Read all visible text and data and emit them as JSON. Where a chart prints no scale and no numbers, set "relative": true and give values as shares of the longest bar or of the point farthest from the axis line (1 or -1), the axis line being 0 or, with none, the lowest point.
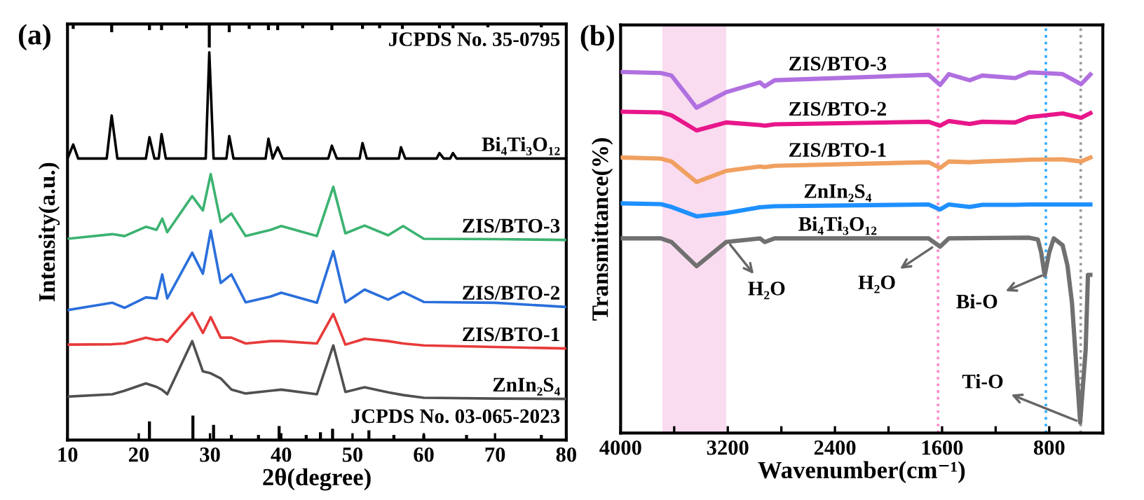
{
  "chart_data": [
    {
      "type": "line",
      "title": "(a)",
      "xlabel": "2θ(degree)",
      "ylabel": "Intensity(a.u.)",
      "relative": true,
      "xlim": [
        10,
        80
      ],
      "xticks": [
        10,
        20,
        30,
        40,
        50,
        60,
        70,
        80
      ],
      "legend": false,
      "grid": false,
      "series": [
        {
          "name": "Bi₄Ti₃O₁₂",
          "color": "#000000",
          "x": [
            10,
            10.8,
            11.5,
            15.5,
            16.2,
            17,
            21,
            21.5,
            22.2,
            22.8,
            23.2,
            23.8,
            29.4,
            29.9,
            30.5,
            32.3,
            32.7,
            33.3,
            37.8,
            38.2,
            38.8,
            39.5,
            40.2,
            46.6,
            47.1,
            47.8,
            51,
            51.4,
            52,
            56.5,
            56.8,
            57.4,
            61.8,
            62.2,
            62.8,
            63.7,
            64.1,
            64.6,
            80
          ],
          "values": [
            0.726,
            0.762,
            0.726,
            0.726,
            0.837,
            0.726,
            0.726,
            0.781,
            0.726,
            0.726,
            0.789,
            0.726,
            0.726,
            1,
            0.726,
            0.726,
            0.784,
            0.726,
            0.726,
            0.777,
            0.726,
            0.755,
            0.726,
            0.726,
            0.759,
            0.726,
            0.726,
            0.766,
            0.726,
            0.726,
            0.755,
            0.726,
            0.726,
            0.74,
            0.726,
            0.726,
            0.74,
            0.726,
            0.726
          ]
        },
        {
          "name": "ZIS/BTO-3",
          "color": "#3cb371",
          "x": [
            10,
            16.3,
            18,
            21,
            22.5,
            23.3,
            24,
            27.5,
            29,
            30.1,
            31.5,
            33,
            35,
            38.5,
            40,
            45,
            47.3,
            49,
            51.7,
            55,
            57.1,
            60,
            70,
            80
          ],
          "values": [
            0.519,
            0.531,
            0.526,
            0.55,
            0.542,
            0.571,
            0.536,
            0.629,
            0.592,
            0.686,
            0.562,
            0.584,
            0.526,
            0.542,
            0.552,
            0.526,
            0.653,
            0.533,
            0.553,
            0.528,
            0.552,
            0.519,
            0.518,
            0.516
          ]
        },
        {
          "name": "ZIS/BTO-2",
          "color": "#2a6fdb",
          "x": [
            10,
            16.3,
            18,
            21,
            22.5,
            23.3,
            24,
            27.5,
            29,
            30.1,
            31.5,
            33,
            35,
            38.5,
            40,
            45,
            47.3,
            49,
            51.7,
            55,
            57.1,
            60,
            70,
            80
          ],
          "values": [
            0.335,
            0.354,
            0.341,
            0.368,
            0.365,
            0.427,
            0.365,
            0.483,
            0.429,
            0.54,
            0.405,
            0.427,
            0.355,
            0.37,
            0.38,
            0.354,
            0.487,
            0.355,
            0.388,
            0.362,
            0.382,
            0.356,
            0.354,
            0.343
          ]
        },
        {
          "name": "ZIS/BTO-1",
          "color": "#e83a3a",
          "x": [
            10,
            16.3,
            18,
            21,
            22.5,
            23.3,
            24,
            27.5,
            29,
            30.1,
            31.5,
            33,
            35,
            38.5,
            40,
            45,
            47.3,
            49,
            51.7,
            55,
            57.1,
            60,
            70,
            80
          ],
          "values": [
            0.246,
            0.247,
            0.249,
            0.264,
            0.258,
            0.26,
            0.253,
            0.328,
            0.276,
            0.317,
            0.264,
            0.264,
            0.249,
            0.255,
            0.255,
            0.249,
            0.325,
            0.246,
            0.261,
            0.255,
            0.249,
            0.244,
            0.24,
            0.236
          ]
        },
        {
          "name": "ZnIn₂S₄",
          "color": "#505050",
          "x": [
            10,
            16.3,
            18,
            21,
            22.5,
            23.3,
            24,
            27.5,
            29,
            30.1,
            31.5,
            33,
            35,
            38.5,
            40,
            45,
            47.3,
            49,
            51.7,
            55,
            57.1,
            60,
            70,
            80
          ],
          "values": [
            0.112,
            0.118,
            0.127,
            0.146,
            0.137,
            0.129,
            0.118,
            0.255,
            0.177,
            0.172,
            0.159,
            0.13,
            0.12,
            0.127,
            0.13,
            0.118,
            0.244,
            0.124,
            0.136,
            0.123,
            0.116,
            0.109,
            0.107,
            0.106
          ]
        },
        {
          "name": "JCPDS No. 03-065-2023",
          "type": "bar",
          "color": "#000000",
          "x": [
            21.5,
            27.6,
            30.5,
            33,
            36.8,
            39.7,
            43.5,
            45.5,
            47.2,
            52.3,
            55.8,
            60,
            66,
            76.5
          ],
          "values": [
            0.048,
            0.063,
            0.039,
            0.013,
            0.013,
            0.036,
            0.013,
            0.02,
            0.029,
            0.025,
            0.013,
            0.013,
            0.013,
            0.013
          ]
        }
      ]
    },
    {
      "type": "bar",
      "relative": true,
      "xlim": [
        10,
        80
      ],
      "tick_labels": false,
      "legend": false,
      "grid": false,
      "series": [
        {
          "name": "JCPDS No. 35-0795",
          "color": "#000000",
          "x": [
            10.8,
            16.2,
            21.5,
            23.2,
            26.7,
            29.9,
            32.7,
            35.5,
            38.2,
            39.5,
            43,
            47.1,
            51.4,
            53.8,
            57,
            62.2,
            64.1,
            69,
            76.5
          ],
          "values": [
            -0.21,
            -0.35,
            -0.26,
            -0.26,
            -0.18,
            -1,
            -0.35,
            -0.21,
            -0.26,
            -0.26,
            -0.18,
            -0.26,
            -0.21,
            -0.18,
            -0.21,
            -0.18,
            -0.18,
            -0.14,
            -0.14
          ]
        }
      ]
    },
    {
      "type": "line",
      "title": "(b)",
      "xlabel": "Wavenumber(cm⁻¹)",
      "ylabel": "Transmittance(%)",
      "relative": true,
      "xlim": [
        4000,
        400
      ],
      "xticks": [
        4000,
        {
          "value": 3600,
          "label": null
        },
        3200,
        {
          "value": 2800,
          "label": null
        },
        2400,
        {
          "value": 2000,
          "label": null
        },
        1600,
        {
          "value": 1200,
          "label": null
        },
        800,
        {
          "value": 400,
          "label": null
        }
      ],
      "legend": false,
      "grid": false,
      "bands": [
        {
          "axis": "x",
          "from": 3688,
          "to": 3212,
          "label": null,
          "color": "#fadcf0"
        }
      ],
      "ref_lines": [
        {
          "axis": "x",
          "value": 1630,
          "label": null,
          "color": "#ff88cc",
          "line_style": "dotted"
        },
        {
          "axis": "x",
          "value": 825,
          "label": null,
          "color": "#33aaff",
          "line_style": "dotted"
        },
        {
          "axis": "x",
          "value": 565,
          "label": null,
          "color": "#999999",
          "line_style": "dotted"
        }
      ],
      "annotations": [
        {
          "text": "H₂O",
          "x": 3200,
          "y": 0.53
        },
        {
          "text": "H₂O",
          "x": 1650,
          "y": 0.52
        },
        {
          "text": "Bi-O",
          "x": 830,
          "y": 0.44
        },
        {
          "text": "Ti-O",
          "x": 569,
          "y": 0.03
        }
      ],
      "series": [
        {
          "name": "ZIS/BTO-3",
          "color": "#b070e0",
          "x": [
            4000,
            3700,
            3620,
            3433,
            3212,
            2960,
            2924,
            2850,
            1700,
            1615,
            1550,
            1394,
            1300,
            1054,
            950,
            700,
            562,
            493
          ],
          "values": [
            1.0,
            0.997,
            0.99,
            0.901,
            0.944,
            0.971,
            0.96,
            0.977,
            0.992,
            0.964,
            0.994,
            0.977,
            0.99,
            0.983,
            0.999,
            0.994,
            0.966,
            0.993
          ]
        },
        {
          "name": "ZIS/BTO-2",
          "color": "#e8168a",
          "x": [
            4000,
            3700,
            3620,
            3433,
            3212,
            2960,
            2924,
            2850,
            1700,
            1615,
            1550,
            1394,
            1300,
            1054,
            950,
            700,
            562,
            493
          ],
          "values": [
            0.89,
            0.888,
            0.88,
            0.838,
            0.86,
            0.853,
            0.851,
            0.855,
            0.862,
            0.851,
            0.864,
            0.856,
            0.862,
            0.86,
            0.875,
            0.885,
            0.873,
            0.886
          ]
        },
        {
          "name": "ZIS/BTO-1",
          "color": "#f0a060",
          "x": [
            4000,
            3700,
            3620,
            3433,
            3212,
            2960,
            2924,
            2850,
            1700,
            1615,
            1550,
            1394,
            1300,
            1054,
            950,
            700,
            562,
            493
          ],
          "values": [
            0.763,
            0.76,
            0.752,
            0.695,
            0.726,
            0.738,
            0.736,
            0.74,
            0.75,
            0.734,
            0.752,
            0.75,
            0.752,
            0.755,
            0.757,
            0.758,
            0.752,
            0.763
          ]
        },
        {
          "name": "ZnIn₂S₄",
          "color": "#1e90ff",
          "x": [
            4000,
            3700,
            3620,
            3433,
            3212,
            2960,
            2924,
            2850,
            1700,
            1615,
            1550,
            1394,
            1300,
            1054,
            950,
            700,
            562,
            493
          ],
          "values": [
            0.636,
            0.634,
            0.626,
            0.6,
            0.609,
            0.625,
            0.626,
            0.628,
            0.633,
            0.619,
            0.633,
            0.626,
            0.632,
            0.632,
            0.633,
            0.633,
            0.633,
            0.633
          ]
        },
        {
          "name": "Bi₄Ti₃O₁₂",
          "color": "#707070",
          "x": [
            4000,
            3700,
            3620,
            3433,
            3212,
            2960,
            2924,
            2850,
            1700,
            1615,
            1550,
            950,
            885,
            860,
            834,
            800,
            766,
            700,
            664,
            630,
            569,
            528,
            511,
            493
          ],
          "values": [
            0.539,
            0.539,
            0.529,
            0.462,
            0.529,
            0.539,
            0.529,
            0.539,
            0.539,
            0.516,
            0.539,
            0.541,
            0.536,
            0.5,
            0.436,
            0.5,
            0.539,
            0.52,
            0.464,
            0.36,
            0.029,
            0.231,
            0.438,
            0.438
          ]
        }
      ]
    }
  ]
}
